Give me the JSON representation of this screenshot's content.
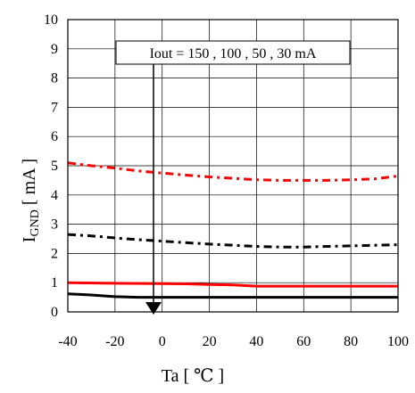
{
  "chart_data": {
    "type": "line",
    "title": "",
    "xlabel": "Ta [ ℃ ]",
    "ylabel_main": "I",
    "ylabel_sub": "GND",
    "ylabel_unit": " [ mA ]",
    "xlim": [
      -40,
      100
    ],
    "ylim": [
      0,
      10
    ],
    "x_ticks": [
      -40,
      -20,
      0,
      20,
      40,
      60,
      80,
      100
    ],
    "y_ticks": [
      0,
      1,
      2,
      3,
      4,
      5,
      6,
      7,
      8,
      9,
      10
    ],
    "grid": true,
    "annotation": "Iout = 150 , 100 , 50 , 30 mA",
    "series": [
      {
        "color": "#ff0000",
        "dash": "dashdot",
        "x": [
          -40,
          -30,
          -20,
          -10,
          0,
          10,
          20,
          30,
          40,
          50,
          60,
          70,
          80,
          90,
          100
        ],
        "y": [
          5.1,
          5.0,
          4.92,
          4.82,
          4.75,
          4.68,
          4.62,
          4.57,
          4.52,
          4.5,
          4.5,
          4.5,
          4.52,
          4.55,
          4.65
        ]
      },
      {
        "color": "#000000",
        "dash": "dashdot",
        "x": [
          -40,
          -30,
          -20,
          -10,
          0,
          10,
          20,
          30,
          40,
          50,
          60,
          70,
          80,
          90,
          100
        ],
        "y": [
          2.65,
          2.6,
          2.53,
          2.47,
          2.42,
          2.37,
          2.32,
          2.28,
          2.24,
          2.22,
          2.22,
          2.24,
          2.26,
          2.28,
          2.3
        ]
      },
      {
        "color": "#ff0000",
        "dash": "solid",
        "x": [
          -40,
          -20,
          0,
          10,
          20,
          30,
          40,
          60,
          80,
          100
        ],
        "y": [
          1.0,
          0.98,
          0.97,
          0.96,
          0.94,
          0.92,
          0.88,
          0.88,
          0.88,
          0.88
        ]
      },
      {
        "color": "#000000",
        "dash": "solid",
        "x": [
          -40,
          -30,
          -20,
          -10,
          0,
          20,
          40,
          60,
          80,
          100
        ],
        "y": [
          0.62,
          0.58,
          0.52,
          0.5,
          0.5,
          0.5,
          0.5,
          0.5,
          0.5,
          0.5
        ]
      }
    ]
  }
}
